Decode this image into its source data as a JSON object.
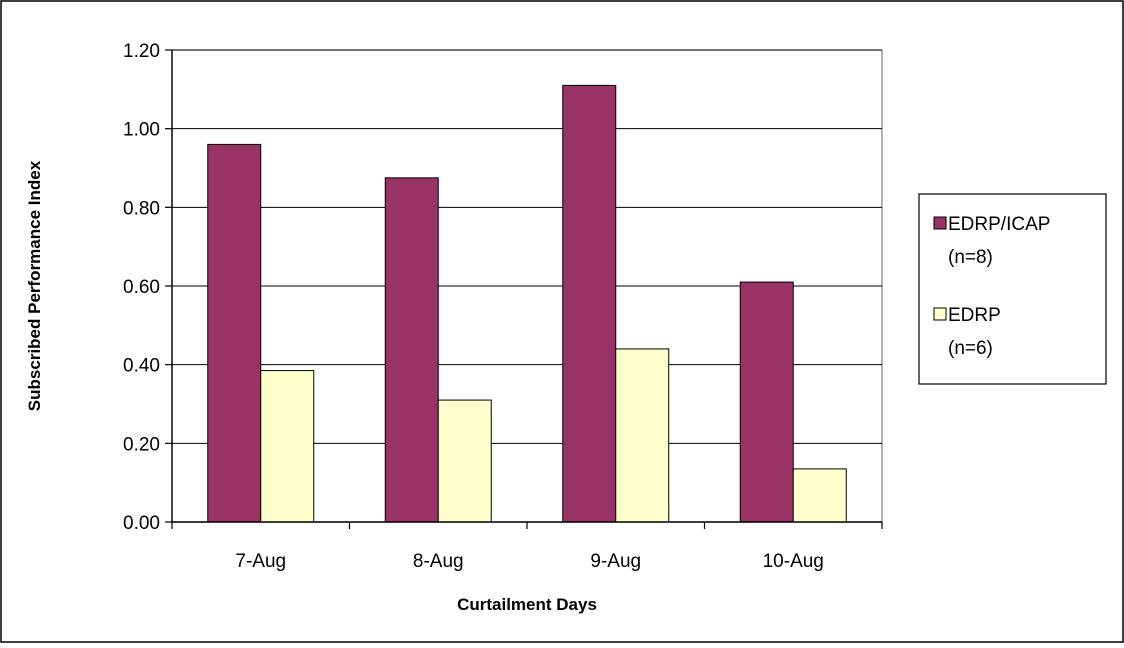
{
  "chart_data": {
    "type": "bar",
    "categories": [
      "7-Aug",
      "8-Aug",
      "9-Aug",
      "10-Aug"
    ],
    "series": [
      {
        "name": "EDRP/ICAP (n=8)",
        "legend_lines": [
          "EDRP/ICAP",
          "(n=8)"
        ],
        "color": "#993366",
        "values": [
          0.96,
          0.875,
          1.11,
          0.61
        ]
      },
      {
        "name": "EDRP (n=6)",
        "legend_lines": [
          "EDRP",
          "(n=6)"
        ],
        "color": "#FFFFCC",
        "values": [
          0.385,
          0.31,
          0.44,
          0.135
        ]
      }
    ],
    "title": "",
    "xlabel": "Curtailment Days",
    "ylabel": "Subscribed Performance Index",
    "ylim": [
      0,
      1.2
    ],
    "yticks": [
      "0.00",
      "0.20",
      "0.40",
      "0.60",
      "0.80",
      "1.00",
      "1.20"
    ],
    "grid": true,
    "legend_position": "right"
  }
}
